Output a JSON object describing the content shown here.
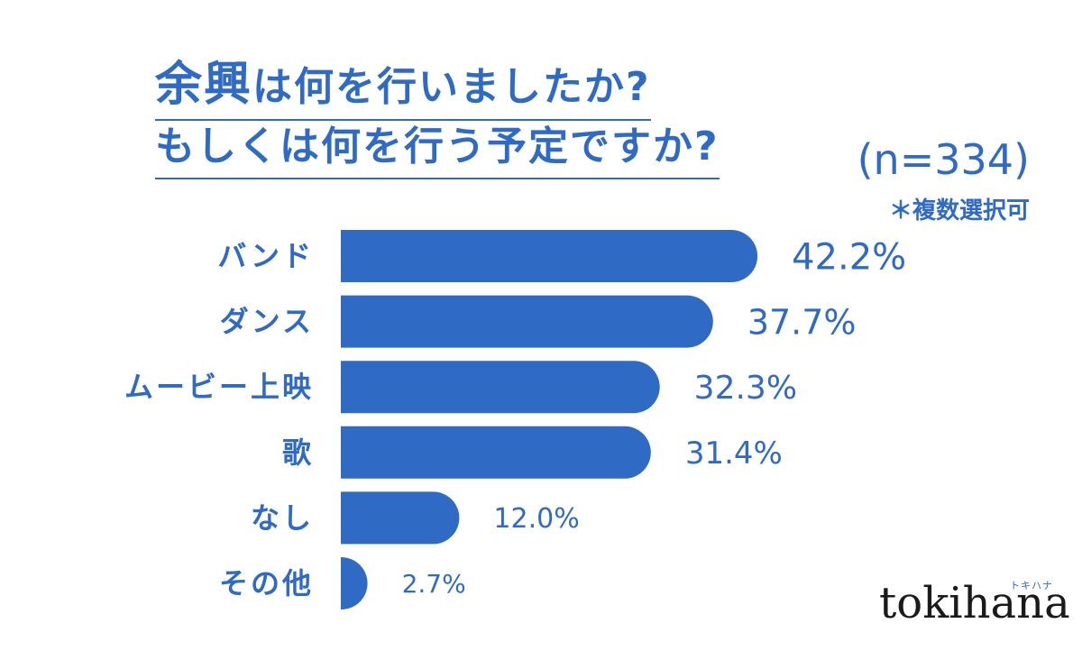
{
  "chart_data": {
    "type": "bar",
    "orientation": "horizontal",
    "title_line1_emphasis": "余興",
    "title_line1_rest": "は何を行いましたか?",
    "title_line2": "もしくは何を行う予定ですか?",
    "sample_size": "(n=334)",
    "note": "＊複数選択可",
    "categories": [
      "バンド",
      "ダンス",
      "ムービー上映",
      "歌",
      "なし",
      "その他"
    ],
    "values": [
      42.2,
      37.7,
      32.3,
      31.4,
      12.0,
      2.7
    ],
    "value_labels": [
      "42.2%",
      "37.7%",
      "32.3%",
      "31.4%",
      "12.0%",
      "2.7%"
    ],
    "unit": "%",
    "bar_color": "#2f6ac4",
    "text_color": "#2f6ac4",
    "grid": false,
    "legend": "none"
  },
  "brand": {
    "logo": "tokihana",
    "logo_kana": "トキハナ"
  }
}
